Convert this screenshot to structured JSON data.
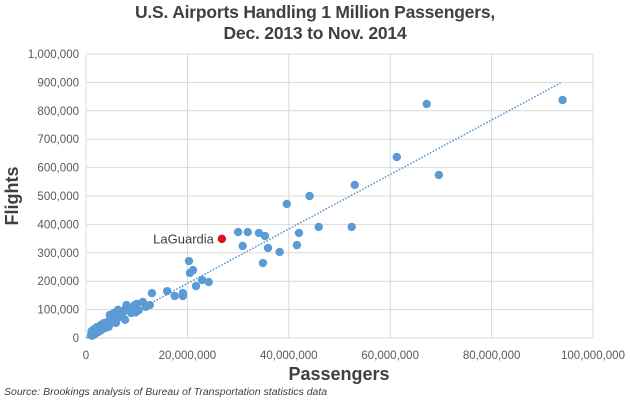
{
  "chart_data": {
    "type": "scatter",
    "title": [
      "U.S. Airports Handling 1 Million Passengers,",
      "Dec. 2013 to Nov. 2014"
    ],
    "xlabel": "Passengers",
    "ylabel": "Flights",
    "xlim": [
      0,
      100000000
    ],
    "ylim": [
      0,
      1000000
    ],
    "x_ticks": [
      0,
      20000000,
      40000000,
      60000000,
      80000000,
      100000000
    ],
    "x_tick_labels": [
      "0",
      "20,000,000",
      "40,000,000",
      "60,000,000",
      "80,000,000",
      "100,000,000"
    ],
    "y_ticks": [
      0,
      100000,
      200000,
      300000,
      400000,
      500000,
      600000,
      700000,
      800000,
      900000,
      1000000
    ],
    "y_tick_labels": [
      "0",
      "100,000",
      "200,000",
      "300,000",
      "400,000",
      "500,000",
      "600,000",
      "700,000",
      "800,000",
      "900,000",
      "1,000,000"
    ],
    "grid": true,
    "legend": "none",
    "series": [
      {
        "name": "Airports",
        "color": "#5b9bd5",
        "points": [
          [
            94000000,
            838000
          ],
          [
            67200000,
            824000
          ],
          [
            61300000,
            637000
          ],
          [
            69600000,
            574000
          ],
          [
            53000000,
            539000
          ],
          [
            52400000,
            391000
          ],
          [
            45900000,
            391000
          ],
          [
            44100000,
            500000
          ],
          [
            39600000,
            472000
          ],
          [
            42000000,
            370000
          ],
          [
            41600000,
            327000
          ],
          [
            38200000,
            303000
          ],
          [
            35900000,
            317000
          ],
          [
            35300000,
            359000
          ],
          [
            34100000,
            370000
          ],
          [
            34900000,
            264000
          ],
          [
            31900000,
            373000
          ],
          [
            30000000,
            373000
          ],
          [
            30900000,
            324000
          ],
          [
            20300000,
            271000
          ],
          [
            20500000,
            229000
          ],
          [
            21100000,
            239000
          ],
          [
            21700000,
            183000
          ],
          [
            22900000,
            204000
          ],
          [
            24200000,
            197000
          ],
          [
            19100000,
            158000
          ],
          [
            19100000,
            148000
          ],
          [
            17500000,
            148000
          ],
          [
            16000000,
            165000
          ],
          [
            13000000,
            158000
          ],
          [
            12600000,
            116000
          ],
          [
            11200000,
            127000
          ],
          [
            9600000,
            116000
          ],
          [
            8000000,
            116000
          ],
          [
            6300000,
            99000
          ],
          [
            5500000,
            88000
          ],
          [
            4700000,
            81000
          ],
          [
            7800000,
            103000
          ],
          [
            9400000,
            106000
          ],
          [
            10400000,
            98000
          ],
          [
            8900000,
            88000
          ],
          [
            7100000,
            84000
          ],
          [
            10000000,
            120000
          ],
          [
            7700000,
            64000
          ],
          [
            5900000,
            53000
          ],
          [
            6700000,
            74000
          ],
          [
            5100000,
            60000
          ],
          [
            4200000,
            56000
          ],
          [
            3600000,
            47000
          ],
          [
            3000000,
            42000
          ],
          [
            4500000,
            40000
          ],
          [
            2600000,
            35000
          ],
          [
            2200000,
            30000
          ],
          [
            1800000,
            26000
          ],
          [
            1500000,
            22000
          ],
          [
            1300000,
            18000
          ],
          [
            1100000,
            14000
          ],
          [
            1000000,
            10000
          ],
          [
            1200000,
            8000
          ],
          [
            1600000,
            12000
          ],
          [
            2000000,
            17000
          ],
          [
            2400000,
            21000
          ],
          [
            2800000,
            25000
          ],
          [
            3300000,
            32000
          ],
          [
            3900000,
            36000
          ],
          [
            1400000,
            28000
          ],
          [
            1100000,
            24000
          ],
          [
            2100000,
            38000
          ],
          [
            1700000,
            32000
          ],
          [
            3500000,
            52000
          ],
          [
            2900000,
            46000
          ],
          [
            6000000,
            70000
          ],
          [
            8500000,
            96000
          ],
          [
            11800000,
            110000
          ],
          [
            9800000,
            90000
          ]
        ]
      },
      {
        "name": "LaGuardia",
        "color": "#e0101a",
        "points": [
          [
            26800000,
            349000
          ]
        ],
        "label": "LaGuardia"
      }
    ],
    "trendline": {
      "type": "linear",
      "style": "dotted",
      "color": "#5b9bd5",
      "from": [
        0,
        0
      ],
      "to": [
        93600000,
        898000
      ]
    },
    "source": "Source: Brookings analysis of Bureau of Transportation statistics data"
  }
}
